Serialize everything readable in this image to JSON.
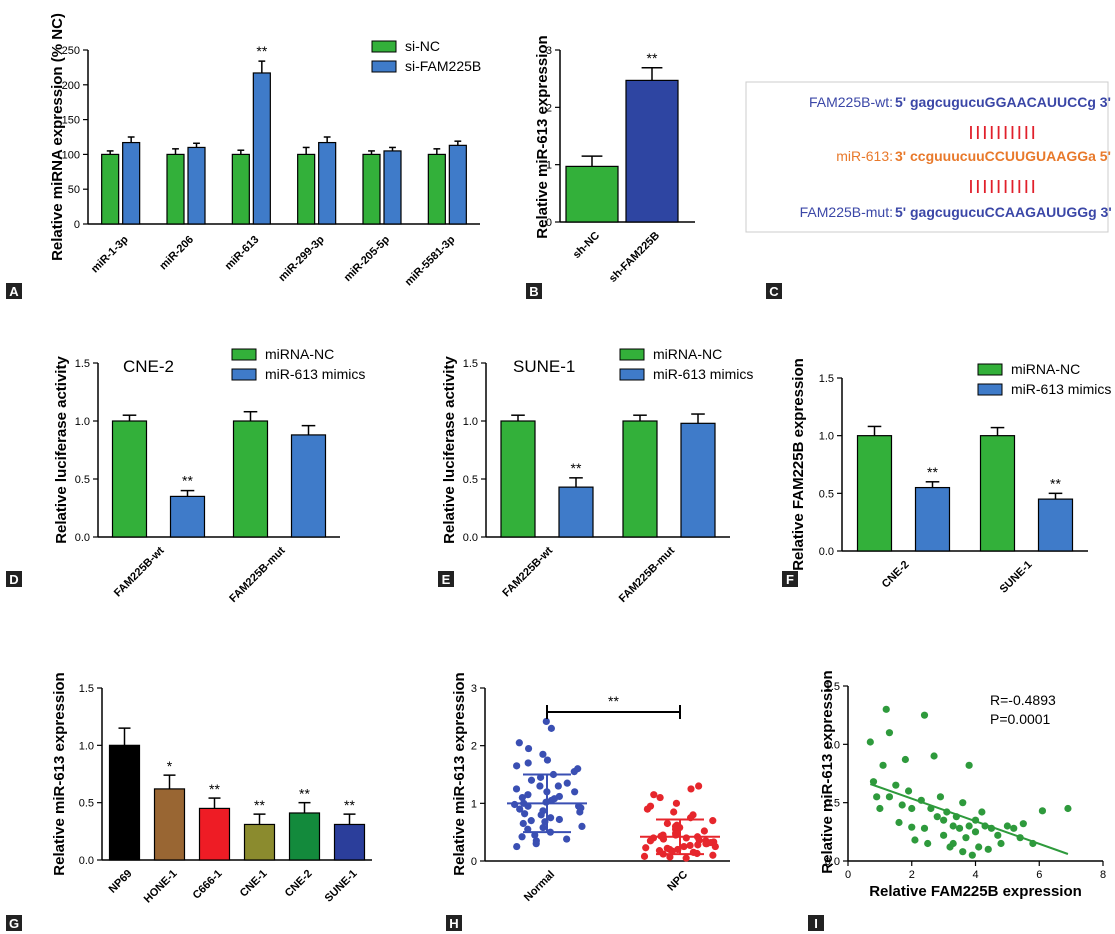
{
  "colors": {
    "green": "#33B03A",
    "blue": "#3F7BC9",
    "darkblue": "#2E45A2",
    "black": "#000000",
    "brown": "#996633",
    "red": "#EE1C25",
    "olive": "#8B8B2E",
    "darkgreen": "#138A3C",
    "navy": "#2B3E9B",
    "scatterBlue": "#3A4FB3",
    "scatterRed": "#E6262C",
    "scatterGreen": "#2E9A3C",
    "seqBlue": "#3B47A7",
    "seqOrange": "#E8792B",
    "seqRed": "#E1202B"
  },
  "chart_data": [
    {
      "panel": "A",
      "type": "bar",
      "ylabel": "Relative miRNA expression (% NC)",
      "ylim": [
        0,
        250
      ],
      "yticks": [
        "0",
        "50",
        "100",
        "150",
        "200",
        "250"
      ],
      "categories": [
        "miR-1-3p",
        "miR-206",
        "miR-613",
        "miR-299-3p",
        "miR-205-5p",
        "miR-5581-3p"
      ],
      "series": [
        {
          "name": "si-NC",
          "values": [
            100,
            100,
            100,
            100,
            100,
            100
          ],
          "err": [
            5,
            8,
            6,
            10,
            5,
            8
          ]
        },
        {
          "name": "si-FAM225B",
          "values": [
            117,
            110,
            217,
            117,
            105,
            113
          ],
          "err": [
            8,
            6,
            17,
            8,
            5,
            6
          ]
        }
      ],
      "annotations": [
        {
          "category": "miR-613",
          "series": "si-FAM225B",
          "text": "**"
        }
      ],
      "legend": "top-right"
    },
    {
      "panel": "B",
      "type": "bar",
      "ylabel": "Relative miR-613 expression",
      "ylim": [
        0,
        3
      ],
      "yticks": [
        "0",
        "1",
        "2",
        "3"
      ],
      "categories": [
        "sh-NC",
        "sh-FAM225B"
      ],
      "values": [
        0.97,
        2.47
      ],
      "err": [
        0.18,
        0.22
      ],
      "annotations": [
        {
          "category": "sh-FAM225B",
          "text": "**"
        }
      ]
    },
    {
      "panel": "D",
      "type": "bar",
      "title": "CNE-2",
      "ylabel": "Relative luciferase activity",
      "ylim": [
        0,
        1.5
      ],
      "yticks": [
        "0.0",
        "0.5",
        "1.0",
        "1.5"
      ],
      "categories": [
        "FAM225B-wt",
        "FAM225B-mut"
      ],
      "series": [
        {
          "name": "miRNA-NC",
          "values": [
            1.0,
            1.0
          ],
          "err": [
            0.05,
            0.08
          ]
        },
        {
          "name": "miR-613 mimics",
          "values": [
            0.35,
            0.88
          ],
          "err": [
            0.05,
            0.08
          ]
        }
      ],
      "annotations": [
        {
          "category": "FAM225B-wt",
          "series": "miR-613 mimics",
          "text": "**"
        }
      ],
      "legend": "top-right"
    },
    {
      "panel": "E",
      "type": "bar",
      "title": "SUNE-1",
      "ylabel": "Relative luciferase activity",
      "ylim": [
        0,
        1.5
      ],
      "yticks": [
        "0.0",
        "0.5",
        "1.0",
        "1.5"
      ],
      "categories": [
        "FAM225B-wt",
        "FAM225B-mut"
      ],
      "series": [
        {
          "name": "miRNA-NC",
          "values": [
            1.0,
            1.0
          ],
          "err": [
            0.05,
            0.05
          ]
        },
        {
          "name": "miR-613 mimics",
          "values": [
            0.43,
            0.98
          ],
          "err": [
            0.08,
            0.08
          ]
        }
      ],
      "annotations": [
        {
          "category": "FAM225B-wt",
          "series": "miR-613 mimics",
          "text": "**"
        }
      ],
      "legend": "top-right"
    },
    {
      "panel": "F",
      "type": "bar",
      "ylabel": "Relative FAM225B expression",
      "ylim": [
        0,
        1.5
      ],
      "yticks": [
        "0.0",
        "0.5",
        "1.0",
        "1.5"
      ],
      "categories": [
        "CNE-2",
        "SUNE-1"
      ],
      "series": [
        {
          "name": "miRNA-NC",
          "values": [
            1.0,
            1.0
          ],
          "err": [
            0.08,
            0.07
          ]
        },
        {
          "name": "miR-613 mimics",
          "values": [
            0.55,
            0.45
          ],
          "err": [
            0.05,
            0.05
          ]
        }
      ],
      "annotations": [
        {
          "category": "CNE-2",
          "series": "miR-613 mimics",
          "text": "**"
        },
        {
          "category": "SUNE-1",
          "series": "miR-613 mimics",
          "text": "**"
        }
      ],
      "legend": "top-right"
    },
    {
      "panel": "G",
      "type": "bar",
      "ylabel": "Relative miR-613 expression",
      "ylim": [
        0,
        1.5
      ],
      "yticks": [
        "0.0",
        "0.5",
        "1.0",
        "1.5"
      ],
      "categories": [
        "NP69",
        "HONE-1",
        "C666-1",
        "CNE-1",
        "CNE-2",
        "SUNE-1"
      ],
      "values": [
        1.0,
        0.62,
        0.45,
        0.31,
        0.41,
        0.31
      ],
      "err": [
        0.15,
        0.12,
        0.09,
        0.09,
        0.09,
        0.09
      ],
      "annotations": [
        "",
        "*",
        "**",
        "**",
        "**",
        "**"
      ]
    },
    {
      "panel": "H",
      "type": "scatter",
      "ylabel": "Relative miR-613 expression",
      "ylim": [
        0,
        3
      ],
      "yticks": [
        "0",
        "1",
        "2",
        "3"
      ],
      "categories": [
        "Normal",
        "NPC"
      ],
      "means": [
        1.0,
        0.42
      ],
      "sd": [
        0.5,
        0.3
      ],
      "significance": "**"
    },
    {
      "panel": "I",
      "type": "scatter",
      "xlabel": "Relative FAM225B expression",
      "ylabel": "Relative miR-613 expression",
      "xlim": [
        0,
        8
      ],
      "ylim": [
        0,
        1.5
      ],
      "xticks": [
        "0",
        "2",
        "4",
        "6",
        "8"
      ],
      "yticks": [
        "0.0",
        "0.5",
        "1.0",
        "1.5"
      ],
      "stats": [
        "R=-0.4893",
        "P=0.0001"
      ],
      "fit": {
        "x": [
          0.7,
          6.9
        ],
        "y": [
          0.66,
          0.06
        ]
      },
      "points": [
        [
          0.7,
          1.02
        ],
        [
          0.8,
          0.68
        ],
        [
          0.9,
          0.55
        ],
        [
          1.0,
          0.45
        ],
        [
          1.1,
          0.82
        ],
        [
          1.2,
          1.3
        ],
        [
          1.3,
          1.1
        ],
        [
          1.3,
          0.55
        ],
        [
          1.5,
          0.65
        ],
        [
          1.6,
          0.33
        ],
        [
          1.7,
          0.48
        ],
        [
          1.8,
          0.87
        ],
        [
          1.9,
          0.6
        ],
        [
          2.0,
          0.45
        ],
        [
          2.0,
          0.29
        ],
        [
          2.1,
          0.18
        ],
        [
          2.3,
          0.52
        ],
        [
          2.4,
          1.25
        ],
        [
          2.4,
          0.28
        ],
        [
          2.6,
          0.45
        ],
        [
          2.7,
          0.9
        ],
        [
          2.8,
          0.38
        ],
        [
          2.9,
          0.55
        ],
        [
          3.0,
          0.35
        ],
        [
          3.0,
          0.22
        ],
        [
          3.1,
          0.42
        ],
        [
          3.2,
          0.12
        ],
        [
          3.3,
          0.3
        ],
        [
          3.4,
          0.38
        ],
        [
          3.5,
          0.28
        ],
        [
          3.6,
          0.5
        ],
        [
          3.6,
          0.08
        ],
        [
          3.7,
          0.2
        ],
        [
          3.8,
          0.82
        ],
        [
          3.8,
          0.3
        ],
        [
          3.9,
          0.05
        ],
        [
          4.0,
          0.35
        ],
        [
          4.0,
          0.25
        ],
        [
          4.1,
          0.12
        ],
        [
          4.2,
          0.42
        ],
        [
          4.3,
          0.3
        ],
        [
          4.5,
          0.28
        ],
        [
          4.7,
          0.22
        ],
        [
          4.8,
          0.15
        ],
        [
          5.0,
          0.3
        ],
        [
          5.2,
          0.28
        ],
        [
          5.4,
          0.2
        ],
        [
          5.5,
          0.32
        ],
        [
          5.8,
          0.15
        ],
        [
          6.1,
          0.43
        ],
        [
          6.9,
          0.45
        ],
        [
          3.3,
          0.15
        ],
        [
          4.4,
          0.1
        ],
        [
          2.5,
          0.15
        ]
      ]
    }
  ],
  "panelC": {
    "lines": [
      {
        "label": "FAM225B-wt:",
        "prime5": "5",
        "prime3": "3",
        "lower": "gagcugucu",
        "upper": "GGAACAUUCCg"
      },
      {
        "label": "miR-613:",
        "prime5": "3",
        "prime3": "5",
        "lower": "ccguuucuu",
        "upper": "CCUUGUAAGGa"
      },
      {
        "label": "FAM225B-mut:",
        "prime5": "5",
        "prime3": "3",
        "lower": "gagcugucu",
        "upper": "CCAAGAUUGGg"
      }
    ],
    "pairs": "||||||||||"
  },
  "panel_labels": [
    "A",
    "B",
    "C",
    "D",
    "E",
    "F",
    "G",
    "H",
    "I"
  ]
}
